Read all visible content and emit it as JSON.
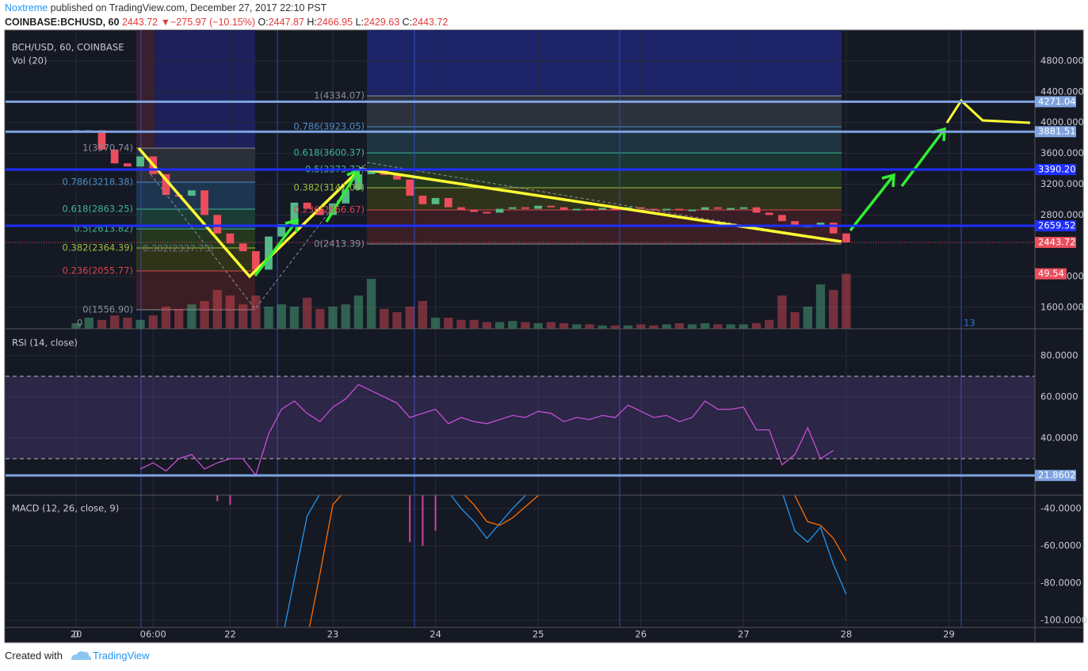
{
  "header": {
    "author": "Noxtreme",
    "published": "published on TradingView.com, December 27, 2017 22:10 PST",
    "symbol": "COINBASE:BCHUSD, 60",
    "last": "2443.72",
    "arrow": "▼",
    "change": "−275.97 (−10.15%)",
    "ohlc": [
      {
        "key": "O:",
        "value": "2447.87"
      },
      {
        "key": "H:",
        "value": "2466.95"
      },
      {
        "key": "L:",
        "value": "2429.63"
      },
      {
        "key": "C:",
        "value": "2443.72"
      }
    ]
  },
  "chart_data": [
    {
      "type": "candlestick",
      "title": "BCH/USD, 60, COINBASE",
      "indicator": "Vol (20)",
      "up_color": "#53b987",
      "down_color": "#eb4d5c",
      "x": [
        0,
        1,
        2,
        3,
        4,
        5,
        6,
        7,
        8,
        9,
        10,
        11,
        12,
        13,
        14,
        15,
        16,
        17,
        18,
        19,
        20,
        21,
        22,
        23,
        24,
        25,
        26,
        27,
        28,
        29,
        30,
        31,
        32,
        33,
        34,
        35,
        36,
        37,
        38,
        39,
        40,
        41,
        42,
        43,
        44,
        45,
        46,
        47,
        48,
        49,
        50,
        51,
        52,
        53,
        54,
        55,
        56,
        57,
        58,
        59,
        60
      ],
      "close": [
        3900,
        3900,
        3650,
        3470,
        3430,
        3560,
        3330,
        3060,
        3050,
        3120,
        2800,
        2560,
        2430,
        2330,
        2090,
        2520,
        2680,
        2960,
        2880,
        2800,
        2950,
        3130,
        3330,
        3390,
        3320,
        3260,
        3050,
        2940,
        3020,
        2900,
        2870,
        2840,
        2830,
        2880,
        2900,
        2880,
        2920,
        2900,
        2870,
        2880,
        2870,
        2890,
        2860,
        2900,
        2880,
        2870,
        2880,
        2860,
        2870,
        2900,
        2880,
        2890,
        2900,
        2830,
        2800,
        2720,
        2650,
        2660,
        2700,
        2560,
        2443.72
      ],
      "volume": [
        5,
        10,
        8,
        12,
        10,
        8,
        12,
        20,
        18,
        22,
        25,
        35,
        30,
        22,
        30,
        20,
        22,
        20,
        28,
        18,
        20,
        22,
        30,
        45,
        18,
        15,
        20,
        25,
        10,
        10,
        8,
        8,
        6,
        6,
        7,
        6,
        5,
        6,
        5,
        4,
        4,
        3,
        3,
        3,
        4,
        3,
        4,
        5,
        4,
        5,
        4,
        4,
        4,
        5,
        8,
        30,
        15,
        20,
        40,
        35,
        49.54
      ],
      "xlim": [
        -5.5,
        74.7
      ],
      "xticks": [
        0,
        {
          "value": 6,
          "label": "06:00"
        },
        {
          "value": 12,
          "label": "22"
        },
        {
          "value": 20,
          "label": "23"
        },
        {
          "value": 28,
          "label": "24"
        },
        {
          "value": 36,
          "label": "25"
        },
        {
          "value": 44,
          "label": "26"
        },
        {
          "value": 52,
          "label": "27"
        },
        {
          "value": 60,
          "label": "28"
        },
        {
          "value": 68,
          "label": "29"
        }
      ],
      "first_day_label": "20",
      "ylim": [
        1322,
        5201
      ],
      "yticks": [
        {
          "value": 4800,
          "label": "4800.000"
        },
        {
          "value": 4400,
          "label": "4400.000"
        },
        {
          "value": 4000,
          "label": "4000.000"
        },
        {
          "value": 3600,
          "label": "3600.000"
        },
        {
          "value": 3200,
          "label": "3200.000"
        },
        {
          "value": 2800,
          "label": "2800.000"
        },
        {
          "value": 2000,
          "label": "2000.000"
        },
        {
          "value": 1600,
          "label": "1600.000"
        }
      ],
      "levels": [
        {
          "value": 4271.04,
          "color": "#7fa3e0"
        },
        {
          "value": 3881.51,
          "color": "#7fa3e0"
        },
        {
          "value": 3390.2,
          "label": "3390.20",
          "color": "#1f2eff"
        },
        {
          "value": 2659.52,
          "color": "#1f2eff"
        }
      ],
      "fib_left": [
        "1(3570.74)",
        "0.786(3218.38)",
        "0.618(2863.25)",
        "0.5(2613.82)",
        "0.382(2364.39)",
        "0.236(2055.77)",
        "0(1556.90)"
      ],
      "fib_right": [
        "1(4334.07)",
        "0.786(3923.05)",
        "0.618(3600.37)",
        "0.5(3373.73)",
        "0.382(3147.09)",
        "0.236(2866.67)",
        "0(2413.39)"
      ],
      "annotations": [
        "0",
        "0.382(2337.73)",
        "13"
      ]
    },
    {
      "type": "line",
      "title": "RSI (14, close)",
      "series": [
        {
          "color": "#c54fd1",
          "values": [
            null,
            null,
            null,
            null,
            null,
            25,
            28,
            24,
            30,
            32,
            25,
            28,
            30,
            30,
            22,
            42,
            54,
            58,
            52,
            48,
            55,
            59,
            66,
            63,
            60,
            57,
            50,
            52,
            54,
            47,
            50,
            48,
            47,
            49,
            51,
            50,
            53,
            52,
            48,
            50,
            49,
            51,
            50,
            56,
            53,
            50,
            51,
            48,
            50,
            58,
            54,
            54,
            55,
            44,
            44,
            27,
            32,
            45,
            30,
            34,
            null
          ]
        }
      ],
      "ylim": [
        12.3,
        93.1
      ],
      "yticks": [
        {
          "value": 80,
          "label": "80.0000"
        },
        {
          "value": 60,
          "label": "60.0000"
        },
        {
          "value": 40,
          "label": "40.0000"
        }
      ],
      "bands": [
        30,
        70
      ],
      "level": 21.8602
    },
    {
      "type": "line",
      "title": "MACD (12, 26, close, 9)",
      "series": [
        {
          "style": "histogram",
          "color": "#d0449a",
          "values": [
            null,
            null,
            null,
            null,
            null,
            null,
            null,
            null,
            null,
            null,
            null,
            -36,
            -38,
            null,
            null,
            null,
            null,
            null,
            null,
            null,
            null,
            null,
            null,
            null,
            null,
            null,
            -58,
            -60,
            -52,
            null,
            null,
            null,
            null,
            null,
            null,
            null,
            null,
            null,
            null,
            null,
            null,
            null,
            null,
            null,
            null,
            null,
            null,
            null,
            null,
            null,
            null,
            null,
            null,
            null,
            null,
            null,
            null,
            null,
            null,
            null,
            null
          ]
        },
        {
          "color": "#2196f3",
          "values": [
            null,
            null,
            null,
            null,
            null,
            null,
            null,
            null,
            null,
            null,
            null,
            null,
            null,
            null,
            null,
            null,
            -112,
            -78,
            -44,
            -32,
            null,
            null,
            null,
            null,
            null,
            null,
            null,
            null,
            null,
            -31,
            -40,
            -47,
            -56,
            -48,
            -40,
            -33,
            null,
            null,
            null,
            null,
            null,
            null,
            null,
            null,
            null,
            null,
            null,
            null,
            null,
            null,
            null,
            null,
            null,
            null,
            null,
            -31,
            -52,
            -58,
            -50,
            -70,
            -86
          ]
        },
        {
          "color": "#ff6d00",
          "values": [
            null,
            null,
            null,
            null,
            null,
            null,
            null,
            null,
            null,
            null,
            null,
            null,
            null,
            null,
            null,
            null,
            null,
            null,
            -110,
            -75,
            -38,
            -30,
            null,
            null,
            null,
            null,
            null,
            null,
            null,
            null,
            -31,
            -38,
            -47,
            -49,
            -45,
            -39,
            -33,
            null,
            null,
            null,
            null,
            null,
            null,
            null,
            null,
            null,
            null,
            null,
            null,
            null,
            null,
            null,
            null,
            null,
            null,
            null,
            -33,
            -47,
            -49,
            -56,
            -68
          ]
        }
      ],
      "ylim": [
        -103.8,
        -32.8
      ],
      "yticks": [
        {
          "value": -40,
          "label": "-40.0000"
        },
        {
          "value": -60,
          "label": "-60.0000"
        },
        {
          "value": -80,
          "label": "-80.0000"
        },
        {
          "value": -100,
          "label": "-100.0000"
        }
      ]
    }
  ],
  "footer": {
    "created": "Created with",
    "brand": "TradingView"
  }
}
